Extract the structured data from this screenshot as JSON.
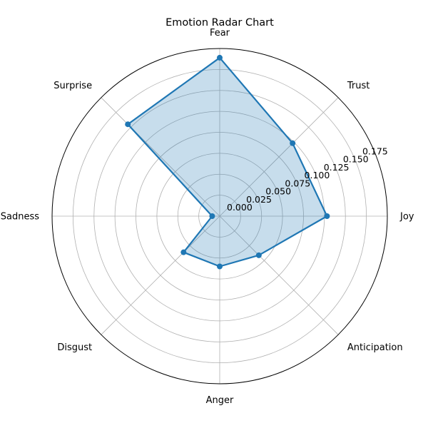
{
  "chart_data": {
    "type": "radar",
    "title": "Emotion Radar Chart",
    "categories": [
      "Joy",
      "Trust",
      "Fear",
      "Surprise",
      "Sadness",
      "Disgust",
      "Anger",
      "Anticipation"
    ],
    "values": [
      0.128,
      0.123,
      0.189,
      0.155,
      0.009,
      0.061,
      0.06,
      0.066
    ],
    "rlim": [
      0,
      0.2
    ],
    "r_ticks": [
      0.0,
      0.025,
      0.05,
      0.075,
      0.1,
      0.125,
      0.15,
      0.175
    ],
    "r_tick_labels": [
      "0.000",
      "0.025",
      "0.050",
      "0.075",
      "0.100",
      "0.125",
      "0.150",
      "0.175"
    ],
    "grid": true,
    "colors": {
      "line": "#1f77b4",
      "fill": "#1f77b4",
      "grid": "#b0b0b0",
      "spine": "#000000"
    }
  }
}
